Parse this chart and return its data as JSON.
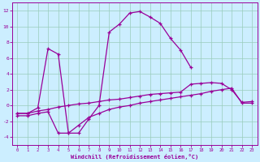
{
  "line1_x": [
    0,
    1,
    2,
    3,
    4,
    5,
    6,
    7,
    8,
    9,
    10,
    11,
    12,
    13,
    14,
    15,
    16,
    17
  ],
  "line1_y": [
    -1.0,
    -1.0,
    -0.3,
    7.2,
    6.5,
    -3.5,
    -3.5,
    -1.7,
    0.0,
    9.3,
    10.3,
    11.7,
    11.9,
    11.2,
    10.4,
    8.5,
    7.0,
    4.8
  ],
  "line2_x": [
    0,
    1,
    2,
    3,
    4,
    5,
    6,
    7,
    8,
    9,
    10,
    11,
    12,
    13,
    14,
    15,
    16,
    17,
    18,
    19,
    20,
    21,
    22,
    23
  ],
  "line2_y": [
    -1.0,
    -1.0,
    -0.7,
    -0.5,
    -0.2,
    0.0,
    0.2,
    0.3,
    0.5,
    0.7,
    0.8,
    1.0,
    1.2,
    1.4,
    1.5,
    1.6,
    1.7,
    2.7,
    2.8,
    2.9,
    2.8,
    2.0,
    0.4,
    0.5
  ],
  "line3_x": [
    0,
    1,
    2,
    3,
    4,
    5,
    6,
    7,
    8,
    9,
    10,
    11,
    12,
    13,
    14,
    15,
    16,
    17,
    18,
    19,
    20,
    21,
    22,
    23
  ],
  "line3_y": [
    -1.3,
    -1.3,
    -1.0,
    -0.8,
    -3.5,
    -3.5,
    -2.5,
    -1.5,
    -1.0,
    -0.5,
    -0.2,
    0.0,
    0.3,
    0.5,
    0.7,
    0.9,
    1.1,
    1.3,
    1.5,
    1.8,
    2.0,
    2.2,
    0.3,
    0.3
  ],
  "bg_color": "#cceeff",
  "line_color": "#990099",
  "grid_color": "#99ccbb",
  "xlabel": "Windchill (Refroidissement éolien,°C)",
  "ylim": [
    -5,
    13
  ],
  "xlim": [
    -0.5,
    23.5
  ],
  "yticks": [
    -4,
    -2,
    0,
    2,
    4,
    6,
    8,
    10,
    12
  ],
  "xticks": [
    0,
    1,
    2,
    3,
    4,
    5,
    6,
    7,
    8,
    9,
    10,
    11,
    12,
    13,
    14,
    15,
    16,
    17,
    18,
    19,
    20,
    21,
    22,
    23
  ]
}
